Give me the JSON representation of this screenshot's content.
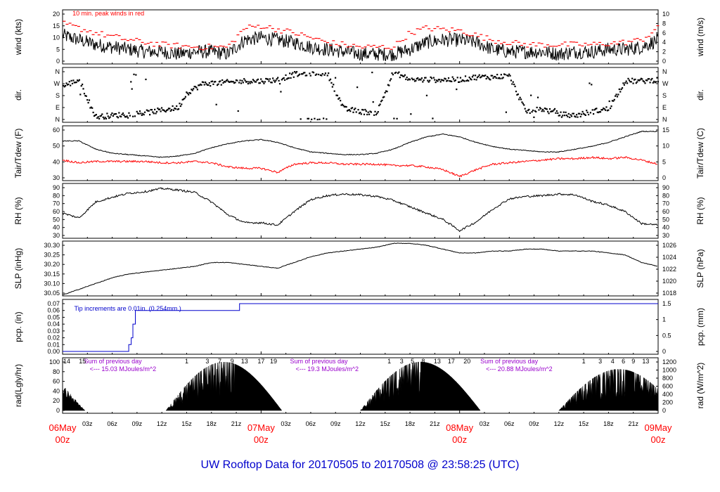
{
  "title": "UW Rooftop Data for 20170505  to  20170508 @ 23:58:25  (UTC)",
  "colors": {
    "title": "#0000cc",
    "peak_wind": "#ff0000",
    "dewpoint": "#ff0000",
    "precip": "#0000cc",
    "radiation_text": "#9900cc",
    "date_labels": "#ff0000"
  },
  "x_axis": {
    "hours_range": [
      0,
      72
    ],
    "hour_ticks": [
      3,
      6,
      9,
      12,
      15,
      18,
      21,
      27,
      30,
      33,
      36,
      39,
      42,
      45,
      51,
      54,
      57,
      60,
      63,
      66,
      69
    ],
    "hour_labels": [
      "03z",
      "06z",
      "09z",
      "12z",
      "15z",
      "18z",
      "21z",
      "03z",
      "06z",
      "09z",
      "12z",
      "15z",
      "18z",
      "21z",
      "03z",
      "06z",
      "09z",
      "12z",
      "15z",
      "18z",
      "21z"
    ],
    "date_labels": [
      {
        "hour": 0,
        "day": "06May",
        "time": "00z"
      },
      {
        "hour": 24,
        "day": "07May",
        "time": "00z"
      },
      {
        "hour": 48,
        "day": "08May",
        "time": "00z"
      },
      {
        "hour": 72,
        "day": "09May",
        "time": "00z"
      }
    ]
  },
  "panels": {
    "wind": {
      "left_label": "wind (kts)",
      "right_label": "wind (m/s)",
      "left_ticks": [
        "0",
        "5",
        "10",
        "15",
        "20"
      ],
      "left_range": [
        0,
        21
      ],
      "right_ticks": [
        "0",
        "2",
        "4",
        "6",
        "8",
        "10"
      ],
      "legend": "10 min. peak winds in red"
    },
    "dir": {
      "left_label": "dir.",
      "right_label": "dir.",
      "left_ticks": [
        "N",
        "E",
        "S",
        "W",
        "N"
      ],
      "right_ticks": [
        "N",
        "E",
        "S",
        "W",
        "N"
      ],
      "range": [
        0,
        360
      ]
    },
    "temp": {
      "left_label": "Tair/Tdew (F)",
      "right_label": "Tair/Tdew (C)",
      "left_ticks": [
        "30",
        "40",
        "50",
        "60"
      ],
      "left_range": [
        27,
        67
      ],
      "right_ticks": [
        "0",
        "5",
        "10",
        "15"
      ]
    },
    "rh": {
      "left_label": "RH (%)",
      "right_label": "RH (%)",
      "left_ticks": [
        "30",
        "40",
        "50",
        "60",
        "70",
        "80",
        "90"
      ],
      "right_ticks": [
        "30",
        "40",
        "50",
        "60",
        "70",
        "80",
        "90"
      ],
      "range": [
        30,
        90
      ]
    },
    "slp": {
      "left_label": "SLP (inHg)",
      "right_label": "SLP (hPa)",
      "left_ticks": [
        "30.05",
        "30.10",
        "30.15",
        "30.20",
        "30.25",
        "30.30"
      ],
      "left_range": [
        30.03,
        30.34
      ],
      "right_ticks": [
        "1018",
        "1020",
        "1022",
        "1024",
        "1026"
      ]
    },
    "pcp": {
      "left_label": "pcp. (in)",
      "right_label": "pcp. (mm)",
      "left_ticks": [
        "0.00",
        "0.01",
        "0.02",
        "0.03",
        "0.04",
        "0.05",
        "0.06",
        "0.07"
      ],
      "left_range": [
        0,
        0.07
      ],
      "right_ticks": [
        "0",
        "0.5",
        "1",
        "1.5"
      ],
      "note": "Tip increments are 0.01in. (0.254mm.)"
    },
    "rad": {
      "left_label": "rad(Lgly/hr)",
      "right_label": "rad (W/m^2)",
      "left_ticks": [
        "0",
        "20",
        "40",
        "60",
        "80",
        "100"
      ],
      "left_range": [
        0,
        100
      ],
      "right_ticks": [
        "0",
        "200",
        "400",
        "600",
        "800",
        "1000",
        "1200"
      ],
      "summaries": [
        {
          "hour": 2.6,
          "line1": "Sum of previous day",
          "line2": "<--- 15.03 MJoules/m^2"
        },
        {
          "hour": 27.5,
          "line1": "Sum of previous day",
          "line2": "<--- 19.3 MJoules/m^2"
        },
        {
          "hour": 50.5,
          "line1": "Sum of previous day",
          "line2": "<--- 20.88 MJoules/m^2"
        }
      ],
      "cloud_codes": [
        {
          "hour": 0.5,
          "text": "14"
        },
        {
          "hour": 2.4,
          "text": "15"
        },
        {
          "hour": 15.0,
          "text": "1"
        },
        {
          "hour": 17.5,
          "text": "3"
        },
        {
          "hour": 19.0,
          "text": "7"
        },
        {
          "hour": 20.5,
          "text": "9"
        },
        {
          "hour": 22.0,
          "text": "13"
        },
        {
          "hour": 24.0,
          "text": "17"
        },
        {
          "hour": 25.5,
          "text": "19"
        },
        {
          "hour": 39.5,
          "text": "1"
        },
        {
          "hour": 41.0,
          "text": "3"
        },
        {
          "hour": 42.3,
          "text": "5"
        },
        {
          "hour": 43.6,
          "text": "8"
        },
        {
          "hour": 45.3,
          "text": "13"
        },
        {
          "hour": 47.0,
          "text": "17"
        },
        {
          "hour": 48.9,
          "text": "20"
        },
        {
          "hour": 63.0,
          "text": "1"
        },
        {
          "hour": 65.0,
          "text": "3"
        },
        {
          "hour": 66.5,
          "text": "4"
        },
        {
          "hour": 67.8,
          "text": "6"
        },
        {
          "hour": 69.0,
          "text": "9"
        },
        {
          "hour": 70.5,
          "text": "13"
        }
      ]
    }
  },
  "chart_data": {
    "type": "line",
    "x_label": "",
    "series": [
      {
        "name": "wind (kts)",
        "x": [
          0,
          2,
          4,
          6,
          8,
          10,
          12,
          14,
          16,
          18,
          20,
          22,
          24,
          26,
          28,
          30,
          32,
          34,
          36,
          38,
          40,
          42,
          44,
          46,
          48,
          50,
          52,
          54,
          56,
          58,
          60,
          62,
          64,
          66,
          68,
          70,
          72
        ],
        "values": [
          11,
          9,
          7,
          6,
          5,
          4,
          4,
          3,
          4,
          4,
          3,
          9,
          10,
          9,
          8,
          6,
          5,
          4,
          3,
          3,
          3,
          5,
          8,
          9,
          9,
          8,
          5,
          4,
          4,
          4,
          3,
          4,
          4,
          5,
          5,
          6,
          9
        ]
      },
      {
        "name": "10 min. peak winds",
        "x": [
          0,
          4,
          8,
          12,
          16,
          20,
          22,
          24,
          28,
          32,
          36,
          40,
          42,
          44,
          48,
          52,
          56,
          60,
          64,
          68,
          70,
          72
        ],
        "values": [
          16,
          12,
          9,
          7,
          6,
          6,
          14,
          15,
          12,
          8,
          6,
          6,
          12,
          14,
          13,
          9,
          7,
          7,
          7,
          8,
          9,
          14
        ]
      },
      {
        "name": "dir. (deg)",
        "x": [
          0,
          2,
          4,
          6,
          8,
          10,
          12,
          14,
          15,
          17,
          20,
          22,
          24,
          26,
          28,
          30,
          32,
          34,
          36,
          38,
          40,
          42,
          44,
          46,
          48,
          50,
          52,
          54,
          56,
          58,
          60,
          62,
          64,
          66,
          68,
          70,
          72
        ],
        "values": [
          250,
          300,
          20,
          30,
          40,
          50,
          70,
          90,
          200,
          270,
          280,
          290,
          290,
          300,
          340,
          350,
          350,
          80,
          60,
          50,
          360,
          300,
          300,
          300,
          300,
          320,
          320,
          330,
          60,
          80,
          40,
          30,
          60,
          80,
          290,
          290,
          300
        ]
      },
      {
        "name": "Tair (F)",
        "x": [
          0,
          2,
          4,
          6,
          8,
          10,
          12,
          14,
          16,
          18,
          20,
          22,
          24,
          26,
          28,
          30,
          32,
          34,
          36,
          38,
          40,
          42,
          44,
          46,
          48,
          50,
          52,
          54,
          56,
          58,
          60,
          62,
          64,
          66,
          68,
          70,
          72
        ],
        "values": [
          57,
          57,
          51,
          48,
          47,
          46,
          45,
          46,
          48,
          52,
          55,
          57,
          58,
          56,
          52,
          49,
          48,
          47,
          47,
          48,
          51,
          56,
          60,
          62,
          60,
          56,
          53,
          51,
          50,
          49,
          49,
          51,
          53,
          56,
          60,
          64,
          64
        ]
      },
      {
        "name": "Tdew (F)",
        "x": [
          0,
          2,
          4,
          6,
          8,
          10,
          12,
          14,
          16,
          18,
          20,
          22,
          24,
          26,
          28,
          30,
          32,
          34,
          36,
          38,
          40,
          42,
          44,
          46,
          48,
          50,
          52,
          54,
          56,
          58,
          60,
          62,
          64,
          66,
          68,
          70,
          72
        ],
        "values": [
          43,
          41,
          42,
          42,
          42,
          42,
          41,
          41,
          42,
          41,
          38,
          37,
          37,
          34,
          40,
          41,
          41,
          40,
          40,
          40,
          39,
          39,
          38,
          36,
          31,
          36,
          40,
          41,
          42,
          43,
          44,
          44,
          45,
          44,
          45,
          43,
          40
        ]
      },
      {
        "name": "RH (%)",
        "x": [
          0,
          2,
          4,
          6,
          8,
          10,
          12,
          14,
          16,
          18,
          20,
          22,
          24,
          26,
          28,
          30,
          32,
          34,
          36,
          38,
          40,
          42,
          44,
          46,
          48,
          50,
          52,
          54,
          56,
          58,
          60,
          62,
          64,
          66,
          68,
          70,
          72
        ],
        "values": [
          58,
          52,
          72,
          78,
          83,
          85,
          89,
          87,
          84,
          72,
          56,
          46,
          46,
          43,
          60,
          75,
          80,
          82,
          81,
          79,
          74,
          66,
          58,
          50,
          36,
          47,
          63,
          76,
          79,
          80,
          82,
          81,
          73,
          68,
          60,
          45,
          43
        ]
      },
      {
        "name": "SLP (inHg)",
        "x": [
          0,
          2,
          4,
          6,
          8,
          10,
          12,
          14,
          16,
          18,
          20,
          22,
          24,
          26,
          28,
          30,
          32,
          34,
          36,
          38,
          40,
          42,
          44,
          46,
          48,
          50,
          52,
          54,
          56,
          58,
          60,
          62,
          64,
          66,
          68,
          70,
          72
        ],
        "values": [
          30.04,
          30.07,
          30.1,
          30.13,
          30.15,
          30.16,
          30.17,
          30.18,
          30.19,
          30.21,
          30.21,
          30.2,
          30.19,
          30.18,
          30.21,
          30.24,
          30.26,
          30.27,
          30.28,
          30.29,
          30.31,
          30.31,
          30.3,
          30.28,
          30.26,
          30.26,
          30.27,
          30.27,
          30.28,
          30.28,
          30.27,
          30.27,
          30.27,
          30.26,
          30.25,
          30.21,
          30.19
        ]
      },
      {
        "name": "pcp. (in)",
        "x": [
          0,
          7.9,
          8.0,
          8.3,
          8.5,
          8.8,
          21.3,
          21.4,
          72
        ],
        "values": [
          0,
          0,
          0.01,
          0.02,
          0.04,
          0.06,
          0.06,
          0.07,
          0.07
        ]
      }
    ],
    "radiation_days": [
      {
        "start": 12.5,
        "end": 26.5,
        "peak_hour": 20.8,
        "peak": 100
      },
      {
        "start": 36.0,
        "end": 50.5,
        "peak_hour": 43.5,
        "peak": 100
      },
      {
        "start": 60.0,
        "end": 74.5,
        "peak_hour": 68.0,
        "peak": 85
      }
    ]
  }
}
